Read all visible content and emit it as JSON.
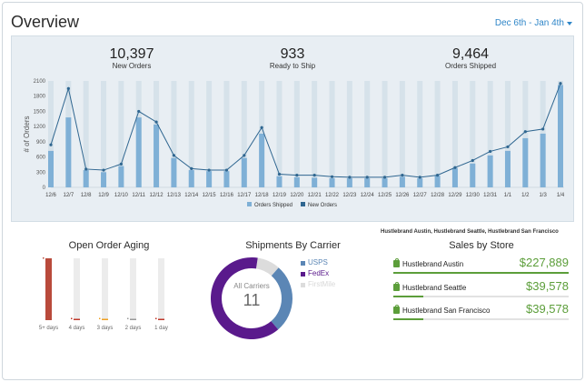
{
  "header": {
    "title": "Overview",
    "date_range": "Dec 6th - Jan 4th"
  },
  "kpis": [
    {
      "value": "10,397",
      "label": "New Orders"
    },
    {
      "value": "933",
      "label": "Ready to Ship"
    },
    {
      "value": "9,464",
      "label": "Orders Shipped"
    }
  ],
  "chart_data": [
    {
      "type": "bar+line",
      "ylabel": "# of Orders",
      "ylim": [
        0,
        2100
      ],
      "yticks": [
        0,
        300,
        600,
        900,
        1200,
        1500,
        1800,
        2100
      ],
      "yticks_labels": [
        "0",
        "300",
        "600",
        "900",
        "1200",
        "1500",
        "1800",
        "2100"
      ],
      "categories": [
        "12/6",
        "12/7",
        "12/8",
        "12/9",
        "12/10",
        "12/11",
        "12/12",
        "12/13",
        "12/14",
        "12/15",
        "12/16",
        "12/17",
        "12/18",
        "12/19",
        "12/20",
        "12/21",
        "12/22",
        "12/23",
        "12/24",
        "12/25",
        "12/26",
        "12/27",
        "12/28",
        "12/29",
        "12/30",
        "12/31",
        "1/1",
        "1/2",
        "1/3",
        "1/4"
      ],
      "series": [
        {
          "name": "Orders Shipped",
          "type": "bar",
          "color": "#7fb0d6",
          "values": [
            720,
            1380,
            340,
            300,
            420,
            1380,
            1240,
            580,
            340,
            320,
            320,
            580,
            1060,
            220,
            200,
            190,
            180,
            180,
            180,
            180,
            210,
            180,
            230,
            380,
            470,
            630,
            720,
            970,
            1060,
            2020
          ]
        },
        {
          "name": "New Orders",
          "type": "line",
          "color": "#2f6690",
          "values": [
            840,
            1950,
            360,
            340,
            460,
            1500,
            1290,
            630,
            370,
            340,
            340,
            630,
            1180,
            260,
            240,
            240,
            210,
            200,
            200,
            200,
            240,
            200,
            240,
            390,
            530,
            710,
            800,
            1100,
            1150,
            2050
          ]
        }
      ],
      "legend_position": "bottom-center",
      "grid": false
    },
    {
      "type": "bar",
      "title": "Open Order Aging",
      "categories": [
        "5+ days",
        "4 days",
        "3 days",
        "2 days",
        "1 day"
      ],
      "values": [
        1.0,
        0.02,
        0.02,
        0.01,
        0.01
      ],
      "colors": [
        "#b94a3b",
        "#c0392b",
        "#f0a020",
        "#999999",
        "#c0392b"
      ],
      "track_color": "#ececec"
    },
    {
      "type": "pie",
      "title": "Shipments By Carrier",
      "center_label": "All Carriers",
      "center_value": "11",
      "slices": [
        {
          "name": "USPS",
          "value": 3,
          "color": "#5b86b5"
        },
        {
          "name": "FedEx",
          "value": 7,
          "color": "#5a1a8c"
        },
        {
          "name": "FirstMile",
          "value": 1,
          "color": "#dcdcdc"
        }
      ]
    }
  ],
  "sales": {
    "caption": "Hustlebrand Austin, Hustlebrand Seattle, Hustlebrand San Francisco",
    "title": "Sales by Store",
    "stores": [
      {
        "name": "Hustlebrand Austin",
        "value": "$227,889",
        "fraction": 1.0
      },
      {
        "name": "Hustlebrand Seattle",
        "value": "$39,578",
        "fraction": 0.17
      },
      {
        "name": "Hustlebrand San Francisco",
        "value": "$39,578",
        "fraction": 0.17
      }
    ],
    "accent": "#5c9e3a"
  }
}
